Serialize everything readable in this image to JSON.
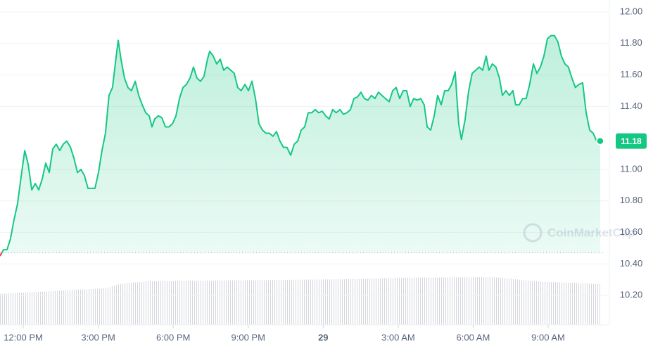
{
  "chart_data": {
    "type": "line",
    "watermark": "CoinMarketCap",
    "last_price_label": "11.18",
    "baseline": 10.47,
    "xlim": [
      -0.93,
      23.28
    ],
    "ylim": [
      10.013,
      12.076
    ],
    "xticks": [
      {
        "value": 0,
        "label": "12:00 PM"
      },
      {
        "value": 3,
        "label": "3:00 PM"
      },
      {
        "value": 6,
        "label": "6:00 PM"
      },
      {
        "value": 9,
        "label": "9:00 PM"
      },
      {
        "value": 12,
        "label": "29"
      },
      {
        "value": 15,
        "label": "3:00 AM"
      },
      {
        "value": 18,
        "label": "6:00 AM"
      },
      {
        "value": 21,
        "label": "9:00 AM"
      }
    ],
    "yticks": [
      {
        "value": 12.0,
        "label": "12.00"
      },
      {
        "value": 11.8,
        "label": "11.80"
      },
      {
        "value": 11.6,
        "label": "11.60"
      },
      {
        "value": 11.4,
        "label": "11.40"
      },
      {
        "value": 11.0,
        "label": "11.00"
      },
      {
        "value": 10.8,
        "label": "10.80"
      },
      {
        "value": 10.6,
        "label": "10.60"
      },
      {
        "value": 10.4,
        "label": "10.40"
      },
      {
        "value": 10.2,
        "label": "10.20"
      }
    ],
    "up_color": "#16c784",
    "down_color": "#ea3943",
    "x": [
      -0.93,
      -0.79,
      -0.65,
      -0.51,
      -0.37,
      -0.23,
      -0.08,
      0.06,
      0.2,
      0.34,
      0.48,
      0.62,
      0.76,
      0.9,
      1.04,
      1.18,
      1.32,
      1.46,
      1.6,
      1.74,
      1.89,
      2.03,
      2.17,
      2.31,
      2.45,
      2.59,
      2.73,
      2.87,
      3.01,
      3.15,
      3.29,
      3.43,
      3.57,
      3.72,
      3.8,
      3.91,
      4.05,
      4.19,
      4.33,
      4.48,
      4.62,
      4.76,
      4.9,
      5.04,
      5.15,
      5.26,
      5.4,
      5.54,
      5.69,
      5.83,
      5.97,
      6.11,
      6.25,
      6.39,
      6.53,
      6.67,
      6.81,
      6.95,
      7.09,
      7.23,
      7.37,
      7.46,
      7.6,
      7.74,
      7.88,
      8.02,
      8.16,
      8.3,
      8.44,
      8.58,
      8.72,
      8.87,
      9.01,
      9.15,
      9.29,
      9.43,
      9.57,
      9.71,
      9.85,
      9.99,
      10.13,
      10.27,
      10.41,
      10.55,
      10.7,
      10.84,
      10.98,
      11.12,
      11.26,
      11.4,
      11.54,
      11.68,
      11.82,
      11.96,
      12.1,
      12.24,
      12.38,
      12.52,
      12.67,
      12.81,
      12.95,
      13.09,
      13.23,
      13.37,
      13.51,
      13.65,
      13.79,
      13.93,
      14.07,
      14.21,
      14.35,
      14.49,
      14.64,
      14.78,
      14.92,
      15.06,
      15.2,
      15.34,
      15.48,
      15.62,
      15.76,
      15.9,
      16.04,
      16.16,
      16.3,
      16.44,
      16.58,
      16.72,
      16.86,
      17.0,
      17.14,
      17.28,
      17.42,
      17.53,
      17.68,
      17.82,
      17.96,
      18.1,
      18.24,
      18.38,
      18.52,
      18.63,
      18.77,
      18.91,
      19.05,
      19.17,
      19.31,
      19.45,
      19.59,
      19.7,
      19.84,
      19.98,
      20.12,
      20.26,
      20.41,
      20.55,
      20.69,
      20.83,
      20.97,
      21.11,
      21.25,
      21.39,
      21.53,
      21.67,
      21.81,
      21.95,
      22.09,
      22.23,
      22.38,
      22.52,
      22.66,
      22.8,
      22.94,
      23.08
    ],
    "values": [
      10.45,
      10.49,
      10.49,
      10.56,
      10.68,
      10.78,
      10.96,
      11.12,
      11.03,
      10.87,
      10.91,
      10.87,
      10.94,
      11.04,
      10.98,
      11.13,
      11.16,
      11.12,
      11.16,
      11.18,
      11.14,
      11.07,
      10.98,
      11.0,
      10.96,
      10.88,
      10.88,
      10.88,
      10.98,
      11.12,
      11.23,
      11.47,
      11.52,
      11.72,
      11.82,
      11.7,
      11.58,
      11.52,
      11.5,
      11.56,
      11.47,
      11.41,
      11.36,
      11.34,
      11.27,
      11.32,
      11.34,
      11.33,
      11.27,
      11.27,
      11.29,
      11.34,
      11.45,
      11.52,
      11.54,
      11.58,
      11.65,
      11.58,
      11.56,
      11.59,
      11.7,
      11.75,
      11.72,
      11.67,
      11.7,
      11.63,
      11.65,
      11.63,
      11.61,
      11.52,
      11.5,
      11.54,
      11.5,
      11.56,
      11.45,
      11.29,
      11.25,
      11.23,
      11.23,
      11.21,
      11.24,
      11.18,
      11.14,
      11.14,
      11.09,
      11.16,
      11.18,
      11.25,
      11.27,
      11.36,
      11.36,
      11.38,
      11.36,
      11.37,
      11.34,
      11.32,
      11.38,
      11.36,
      11.38,
      11.35,
      11.36,
      11.38,
      11.45,
      11.46,
      11.49,
      11.45,
      11.44,
      11.47,
      11.45,
      11.49,
      11.47,
      11.45,
      11.43,
      11.5,
      11.52,
      11.45,
      11.5,
      11.5,
      11.4,
      11.45,
      11.44,
      11.45,
      11.41,
      11.27,
      11.25,
      11.34,
      11.47,
      11.41,
      11.5,
      11.5,
      11.54,
      11.62,
      11.29,
      11.19,
      11.32,
      11.5,
      11.61,
      11.63,
      11.65,
      11.63,
      11.72,
      11.63,
      11.67,
      11.65,
      11.58,
      11.47,
      11.5,
      11.47,
      11.5,
      11.41,
      11.41,
      11.45,
      11.45,
      11.54,
      11.67,
      11.61,
      11.65,
      11.72,
      11.83,
      11.85,
      11.85,
      11.81,
      11.72,
      11.67,
      11.65,
      11.58,
      11.52,
      11.54,
      11.55,
      11.36,
      11.25,
      11.23,
      11.18,
      11.18
    ]
  }
}
